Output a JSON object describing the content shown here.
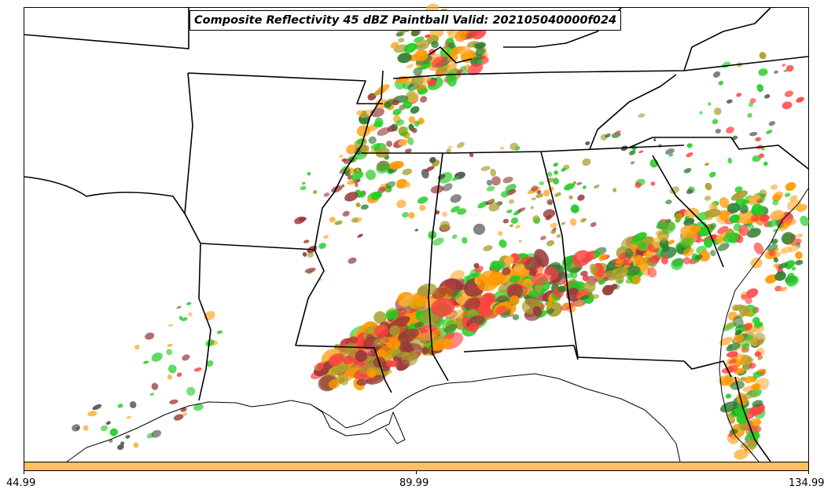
{
  "title": "Composite Reflectivity 45 dBZ Paintball Valid: 202105040000f024",
  "colorbar": {
    "ticks": [
      "44.99",
      "89.99",
      "134.99"
    ],
    "color": "#ffc060"
  },
  "colors": {
    "red": "#ff4040",
    "green": "#22cc22",
    "orange": "#ff9900",
    "olive": "#a8a030",
    "darkred": "#9a3a3a",
    "darkgreen": "#2e7d32",
    "grey": "#505050",
    "lightorange": "#ffb040"
  }
}
